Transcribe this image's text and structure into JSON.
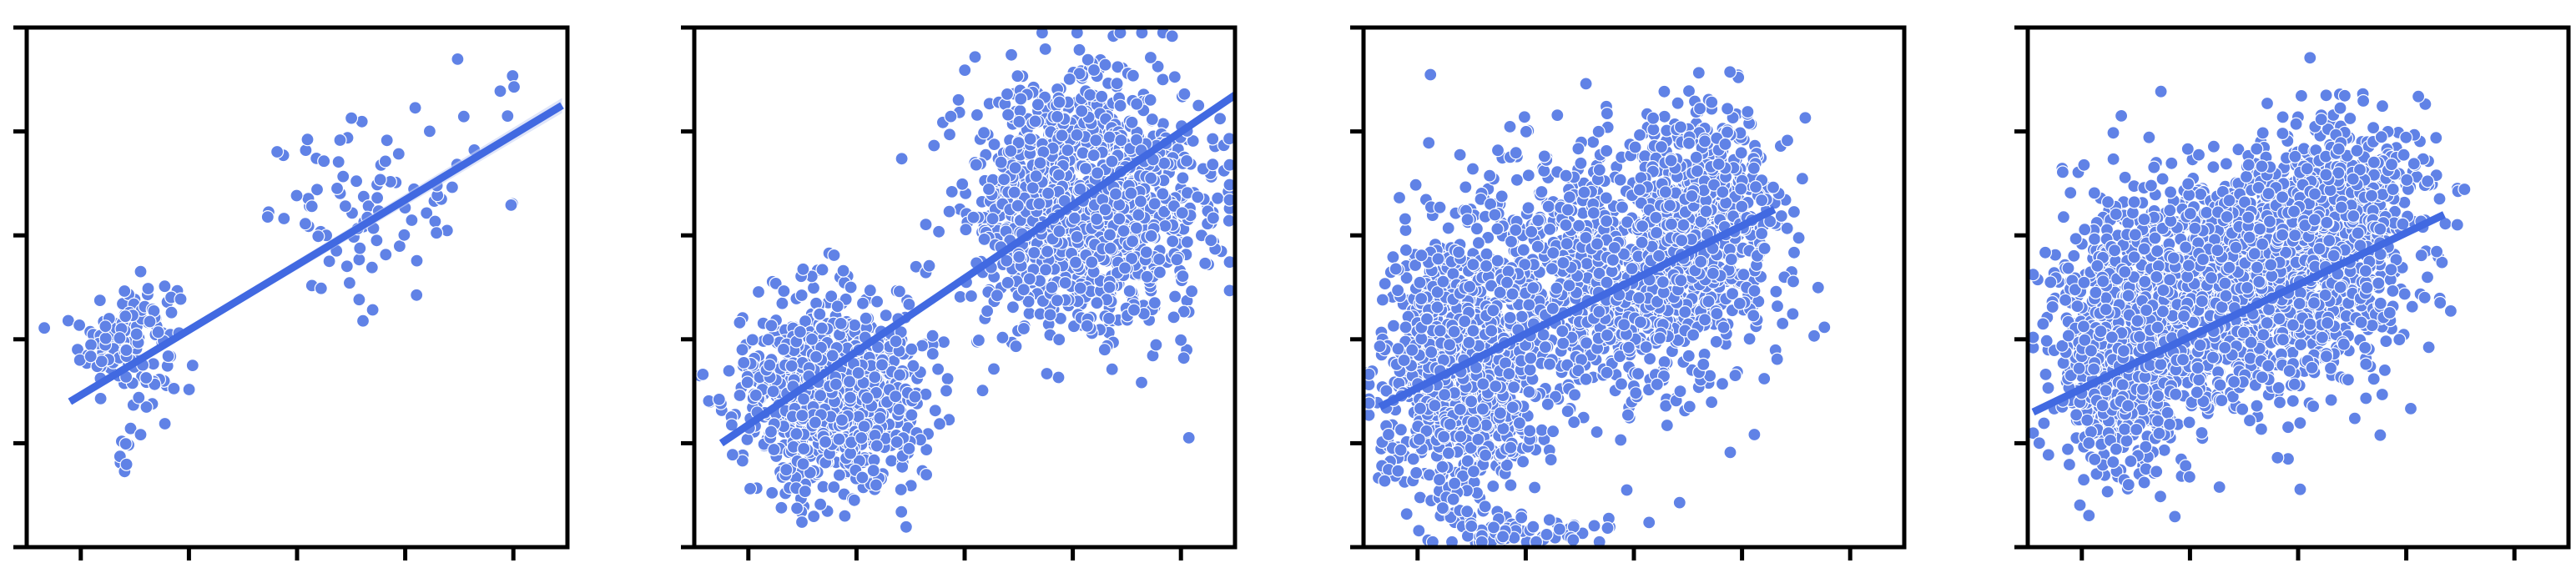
{
  "colors": {
    "point_fill": "#6082e6",
    "point_edge": "#ffffff",
    "line": "#4169e1",
    "band": "#c9d3f5",
    "axes": "#000000"
  },
  "chart_data": [
    {
      "type": "scatter",
      "title": "",
      "xlabel": "",
      "ylabel": "",
      "grid": false,
      "legend": "none",
      "xlim": [
        0,
        100
      ],
      "ylim": [
        0,
        100
      ],
      "tick_labels_shown": false,
      "x_ticks": [
        10,
        30,
        50,
        70,
        90
      ],
      "y_ticks": [
        0,
        20,
        40,
        60,
        80,
        100
      ],
      "regression": {
        "x_start": 8,
        "y_start": 28,
        "x_end": 99,
        "y_end": 85,
        "confidence_band": true
      },
      "clusters": [
        {
          "n": 140,
          "cx": 19,
          "cy": 40,
          "sx": 4.5,
          "sy": 6
        },
        {
          "n": 70,
          "cx": 61,
          "cy": 64,
          "sx": 8,
          "sy": 8
        },
        {
          "n": 8,
          "cx": 18,
          "cy": 18,
          "sx": 1.2,
          "sy": 1.5
        },
        {
          "n": 20,
          "cx": 80,
          "cy": 75,
          "sx": 8,
          "sy": 9
        }
      ]
    },
    {
      "type": "scatter",
      "title": "",
      "xlabel": "",
      "ylabel": "",
      "grid": false,
      "legend": "none",
      "xlim": [
        0,
        100
      ],
      "ylim": [
        0,
        100
      ],
      "tick_labels_shown": false,
      "x_ticks": [
        10,
        30,
        50,
        70,
        90
      ],
      "y_ticks": [
        0,
        20,
        40,
        60,
        80,
        100
      ],
      "regression": {
        "x_start": 5,
        "y_start": 20,
        "x_end": 100,
        "y_end": 87,
        "confidence_band": false
      },
      "clusters": [
        {
          "n": 950,
          "cx": 25,
          "cy": 30,
          "sx": 8,
          "sy": 9
        },
        {
          "n": 1300,
          "cx": 72,
          "cy": 66,
          "sx": 11,
          "sy": 12
        }
      ]
    },
    {
      "type": "scatter",
      "title": "",
      "xlabel": "",
      "ylabel": "",
      "grid": false,
      "legend": "none",
      "xlim": [
        0,
        100
      ],
      "ylim": [
        0,
        100
      ],
      "tick_labels_shown": false,
      "x_ticks": [
        10,
        30,
        50,
        70,
        90
      ],
      "y_ticks": [
        0,
        20,
        40,
        60,
        80,
        100
      ],
      "regression": {
        "x_start": 3,
        "y_start": 27,
        "x_end": 76,
        "y_end": 65,
        "confidence_band": false
      },
      "clusters": [
        {
          "n": 1100,
          "cx": 18,
          "cy": 35,
          "sx": 7,
          "sy": 13
        },
        {
          "n": 1000,
          "cx": 47,
          "cy": 52,
          "sx": 12,
          "sy": 12
        },
        {
          "n": 500,
          "cx": 64,
          "cy": 66,
          "sx": 6,
          "sy": 9
        },
        {
          "n": 60,
          "cx": 30,
          "cy": 3,
          "sx": 9,
          "sy": 1.5
        }
      ]
    },
    {
      "type": "scatter",
      "title": "",
      "xlabel": "",
      "ylabel": "",
      "grid": false,
      "legend": "none",
      "xlim": [
        0,
        100
      ],
      "ylim": [
        0,
        100
      ],
      "tick_labels_shown": false,
      "x_ticks": [
        10,
        30,
        50,
        70,
        90
      ],
      "y_ticks": [
        0,
        20,
        40,
        60,
        80,
        100
      ],
      "regression": {
        "x_start": 1,
        "y_start": 26,
        "x_end": 77,
        "y_end": 64,
        "confidence_band": false
      },
      "clusters": [
        {
          "n": 1100,
          "cx": 18,
          "cy": 38,
          "sx": 6,
          "sy": 11
        },
        {
          "n": 1300,
          "cx": 40,
          "cy": 50,
          "sx": 12,
          "sy": 11
        },
        {
          "n": 600,
          "cx": 56,
          "cy": 62,
          "sx": 8,
          "sy": 10
        },
        {
          "n": 50,
          "cx": 66,
          "cy": 75,
          "sx": 6,
          "sy": 5
        }
      ]
    }
  ]
}
